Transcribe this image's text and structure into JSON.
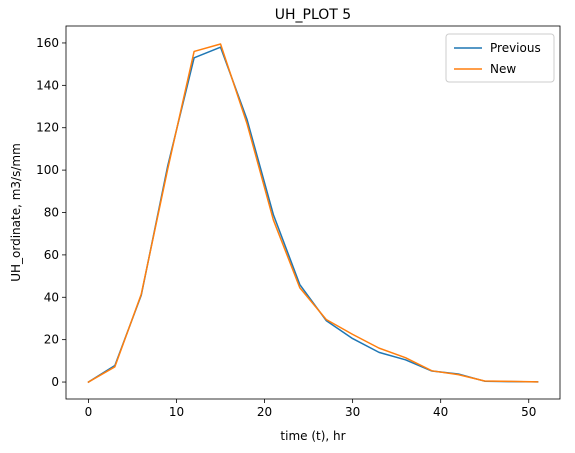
{
  "chart_data": {
    "type": "line",
    "title": "UH_PLOT 5",
    "xlabel": "time (t), hr",
    "ylabel": "UH_ordinate, m3/s/mm",
    "xlim": [
      -2.55,
      53.55
    ],
    "ylim": [
      -8.0,
      168.0
    ],
    "xticks": [
      0,
      10,
      20,
      30,
      40,
      50
    ],
    "yticks": [
      0,
      20,
      40,
      60,
      80,
      100,
      120,
      140,
      160
    ],
    "grid": false,
    "legend_position": "top-right",
    "series": [
      {
        "name": "Previous",
        "color": "#1f77b4",
        "x": [
          0,
          3,
          6,
          9,
          12,
          15,
          18,
          21,
          24,
          27,
          30,
          33,
          36,
          39,
          42,
          45,
          48,
          51
        ],
        "y": [
          0,
          7.8,
          41,
          102,
          153,
          158,
          124,
          79,
          46,
          29,
          20.5,
          14,
          10.5,
          5.2,
          3.8,
          0.4,
          0.2,
          0.1
        ]
      },
      {
        "name": "New",
        "color": "#ff7f0e",
        "x": [
          0,
          3,
          6,
          9,
          12,
          15,
          18,
          21,
          24,
          27,
          30,
          33,
          36,
          39,
          42,
          45,
          48,
          51
        ],
        "y": [
          0,
          7.2,
          41.5,
          100.5,
          156,
          159.5,
          122,
          76.5,
          44.5,
          29.5,
          22.5,
          16,
          11.5,
          5.3,
          3.5,
          0.5,
          0.3,
          0.1
        ]
      }
    ]
  }
}
